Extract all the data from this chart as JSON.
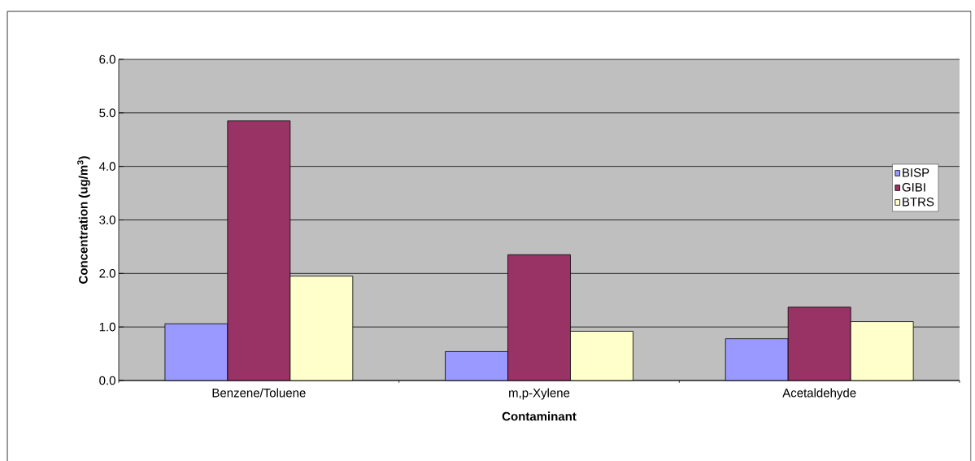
{
  "chart_data": {
    "type": "bar",
    "xlabel": "Contaminant",
    "ylabel": "Concentration  (ug/m$^{3}$)",
    "categories": [
      "Benzene/Toluene",
      "m,p-Xylene",
      "Acetaldehyde"
    ],
    "series": [
      {
        "name": "BISP",
        "color": "#9999ff",
        "values": [
          1.06,
          0.54,
          0.78
        ]
      },
      {
        "name": "GIBI",
        "color": "#993366",
        "values": [
          4.85,
          2.35,
          1.37
        ]
      },
      {
        "name": "BTRS",
        "color": "#ffffcc",
        "values": [
          1.95,
          0.92,
          1.1
        ]
      }
    ],
    "ylim": [
      0,
      6
    ],
    "yticks": [
      {
        "value": 0,
        "label": "0.0"
      },
      {
        "value": 1,
        "label": "1.0"
      },
      {
        "value": 2,
        "label": "2.0"
      },
      {
        "value": 3,
        "label": "3.0"
      },
      {
        "value": 4,
        "label": "4.0"
      },
      {
        "value": 5,
        "label": "5.0"
      },
      {
        "value": 6,
        "label": "6.0"
      }
    ],
    "grid": "y",
    "legend": "right"
  }
}
